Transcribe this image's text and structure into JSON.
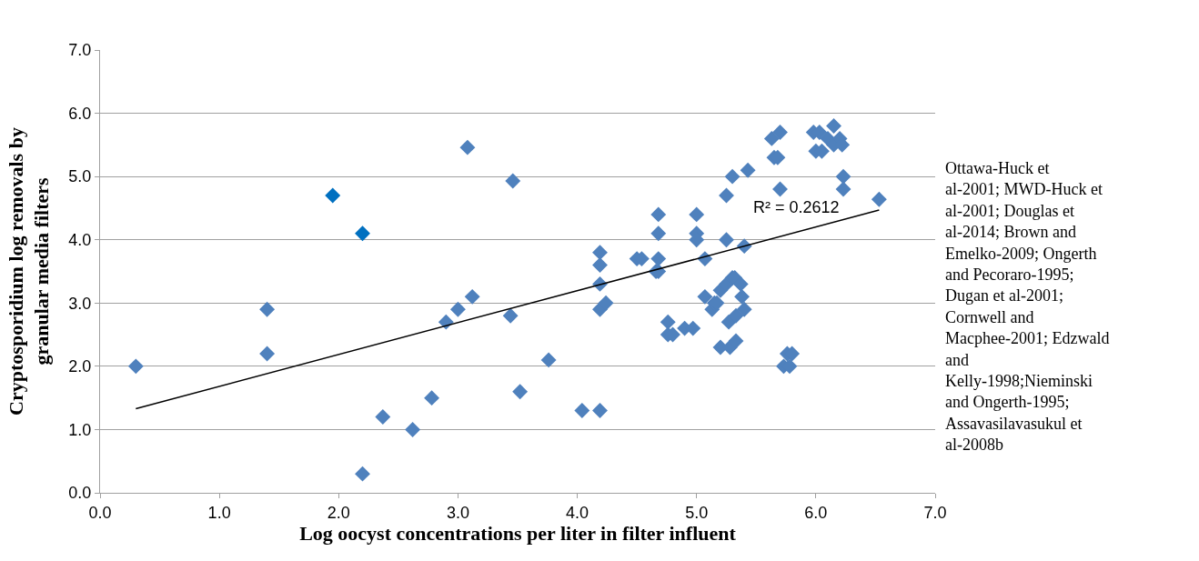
{
  "chart_data": {
    "type": "scatter",
    "xlabel": "Log oocyst concentrations per liter in filter influent",
    "ylabel": "Cryptosporidium log removals by granular media filters",
    "xlim": [
      0,
      7
    ],
    "ylim": [
      0,
      7
    ],
    "xticks": [
      {
        "value": 0,
        "label": "0.0"
      },
      {
        "value": 1,
        "label": "1.0"
      },
      {
        "value": 2,
        "label": "2.0"
      },
      {
        "value": 3,
        "label": "3.0"
      },
      {
        "value": 4,
        "label": "4.0"
      },
      {
        "value": 5,
        "label": "5.0"
      },
      {
        "value": 6,
        "label": "6.0"
      },
      {
        "value": 7,
        "label": "7.0"
      }
    ],
    "yticks": [
      {
        "value": 0,
        "label": "0.0"
      },
      {
        "value": 1,
        "label": "1.0"
      },
      {
        "value": 2,
        "label": "2.0"
      },
      {
        "value": 3,
        "label": "3.0"
      },
      {
        "value": 4,
        "label": "4.0"
      },
      {
        "value": 5,
        "label": "5.0"
      },
      {
        "value": 6,
        "label": "6.0"
      },
      {
        "value": 7,
        "label": "7.0"
      }
    ],
    "grid": "y",
    "marker": "diamond",
    "annotations": [
      "R² = 0.2612",
      "Ottawa-Huck et al-2001; MWD-Huck et al-2001; Douglas et al-2014; Brown and Emelko-2009; Ongerth and Pecoraro-1995; Dugan et al-2001; Cornwell and Macphee-2001; Edzwald and Kelly-1998;Nieminski and Ongerth-1995; Assavasilavasukul et al-2008b"
    ],
    "series": [
      {
        "color": "#4f81bd",
        "x": [
          0.3,
          1.4,
          1.4,
          2.2,
          2.37,
          2.62,
          2.78,
          2.9,
          3.0,
          3.08,
          3.12,
          3.44,
          3.46,
          3.52,
          3.76,
          4.04,
          4.19,
          4.19,
          4.19,
          4.19,
          4.19,
          4.24,
          4.5,
          4.54,
          4.66,
          4.68,
          4.68,
          4.68,
          4.68,
          4.76,
          4.76,
          4.8,
          4.9,
          4.97,
          5.0,
          5.0,
          5.0,
          5.07,
          5.07,
          5.13,
          5.15,
          5.17,
          5.2,
          5.2,
          5.25,
          5.25,
          5.25,
          5.27,
          5.28,
          5.3,
          5.3,
          5.32,
          5.33,
          5.33,
          5.37,
          5.38,
          5.4,
          5.4,
          5.43,
          5.63,
          5.65,
          5.68,
          5.7,
          5.7,
          5.73,
          5.76,
          5.8,
          5.78,
          5.98,
          6.0,
          6.03,
          6.05,
          6.1,
          6.15,
          6.15,
          6.2,
          6.22,
          6.23,
          6.23,
          6.53
        ],
        "values": [
          2.0,
          2.9,
          2.2,
          0.3,
          1.2,
          1.0,
          1.5,
          2.7,
          2.9,
          5.46,
          3.1,
          2.8,
          4.93,
          1.6,
          2.1,
          1.3,
          1.3,
          3.8,
          3.6,
          3.3,
          2.9,
          3.0,
          3.7,
          3.7,
          3.5,
          4.4,
          4.1,
          3.7,
          3.5,
          2.7,
          2.5,
          2.5,
          2.6,
          2.6,
          4.4,
          4.1,
          4.0,
          3.7,
          3.1,
          2.9,
          3.0,
          3.0,
          2.3,
          3.2,
          3.3,
          4.7,
          4.0,
          2.7,
          2.3,
          3.4,
          5.0,
          3.4,
          2.4,
          2.8,
          3.3,
          3.1,
          3.9,
          2.9,
          5.1,
          5.6,
          5.3,
          5.3,
          5.7,
          4.8,
          2.0,
          2.2,
          2.2,
          2.0,
          5.7,
          5.4,
          5.7,
          5.4,
          5.6,
          5.8,
          5.5,
          5.6,
          5.5,
          5.0,
          4.8,
          4.64
        ]
      },
      {
        "color": "#0070c0",
        "x": [
          1.95,
          2.2
        ],
        "values": [
          4.7,
          4.1
        ]
      },
      {
        "type": "line",
        "color": "#000000",
        "marker": "none",
        "x": [
          0.3,
          6.53
        ],
        "values": [
          1.33,
          4.47
        ]
      }
    ]
  }
}
